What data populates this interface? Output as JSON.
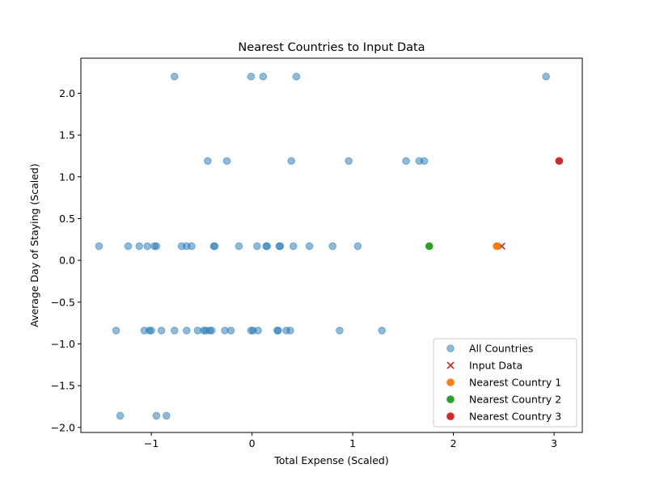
{
  "chart_data": {
    "type": "scatter",
    "title": "Nearest Countries to Input Data",
    "xlabel": "Total Expense (Scaled)",
    "ylabel": "Average Day of Staying (Scaled)",
    "xlim": [
      -1.7,
      3.28
    ],
    "ylim": [
      -2.06,
      2.42
    ],
    "xticks": [
      -1,
      0,
      1,
      2,
      3
    ],
    "xtick_labels": [
      "−1",
      "0",
      "1",
      "2",
      "3"
    ],
    "yticks": [
      -2.0,
      -1.5,
      -1.0,
      -0.5,
      0.0,
      0.5,
      1.0,
      1.5,
      2.0
    ],
    "ytick_labels": [
      "−2.0",
      "−1.5",
      "−1.0",
      "−0.5",
      "0.0",
      "0.5",
      "1.0",
      "1.5",
      "2.0"
    ],
    "grid": false,
    "legend_position": "bottom-right",
    "series": [
      {
        "name": "All Countries",
        "marker": "circle",
        "color": "#1f77b4",
        "alpha": 0.5,
        "x": [
          -0.77,
          -0.01,
          0.11,
          0.44,
          2.92,
          -0.44,
          -0.25,
          0.39,
          0.96,
          1.53,
          1.66,
          1.71,
          -1.52,
          -1.23,
          -1.12,
          -1.04,
          -0.97,
          -0.95,
          -0.7,
          -0.65,
          -0.6,
          -0.38,
          -0.37,
          -0.13,
          0.05,
          0.14,
          0.15,
          0.27,
          0.28,
          0.41,
          0.57,
          0.8,
          1.05,
          -1.35,
          -1.07,
          -1.02,
          -1.0,
          -0.9,
          -0.77,
          -0.65,
          -0.54,
          -0.48,
          -0.46,
          -0.42,
          -0.4,
          -0.27,
          -0.21,
          -0.01,
          0.01,
          0.06,
          0.25,
          0.26,
          0.34,
          0.38,
          0.87,
          1.29,
          -1.31,
          -0.95,
          -0.85
        ],
        "y": [
          2.2,
          2.2,
          2.2,
          2.2,
          2.2,
          1.19,
          1.19,
          1.19,
          1.19,
          1.19,
          1.19,
          1.19,
          0.17,
          0.17,
          0.17,
          0.17,
          0.17,
          0.17,
          0.17,
          0.17,
          0.17,
          0.17,
          0.17,
          0.17,
          0.17,
          0.17,
          0.17,
          0.17,
          0.17,
          0.17,
          0.17,
          0.17,
          0.17,
          -0.84,
          -0.84,
          -0.84,
          -0.84,
          -0.84,
          -0.84,
          -0.84,
          -0.84,
          -0.84,
          -0.84,
          -0.84,
          -0.84,
          -0.84,
          -0.84,
          -0.84,
          -0.84,
          -0.84,
          -0.84,
          -0.84,
          -0.84,
          -0.84,
          -0.84,
          -0.84,
          -1.86,
          -1.86,
          -1.86
        ]
      },
      {
        "name": "Input Data",
        "marker": "x",
        "color": "#d62728",
        "alpha": 1,
        "x": [
          2.48
        ],
        "y": [
          0.17
        ]
      },
      {
        "name": "Nearest Country 1",
        "marker": "circle",
        "color": "#ff7f0e",
        "alpha": 1,
        "x": [
          2.43
        ],
        "y": [
          0.17
        ]
      },
      {
        "name": "Nearest Country 2",
        "marker": "circle",
        "color": "#2ca02c",
        "alpha": 1,
        "x": [
          1.76
        ],
        "y": [
          0.17
        ]
      },
      {
        "name": "Nearest Country 3",
        "marker": "circle",
        "color": "#d62728",
        "alpha": 1,
        "x": [
          3.05
        ],
        "y": [
          1.19
        ]
      }
    ]
  }
}
